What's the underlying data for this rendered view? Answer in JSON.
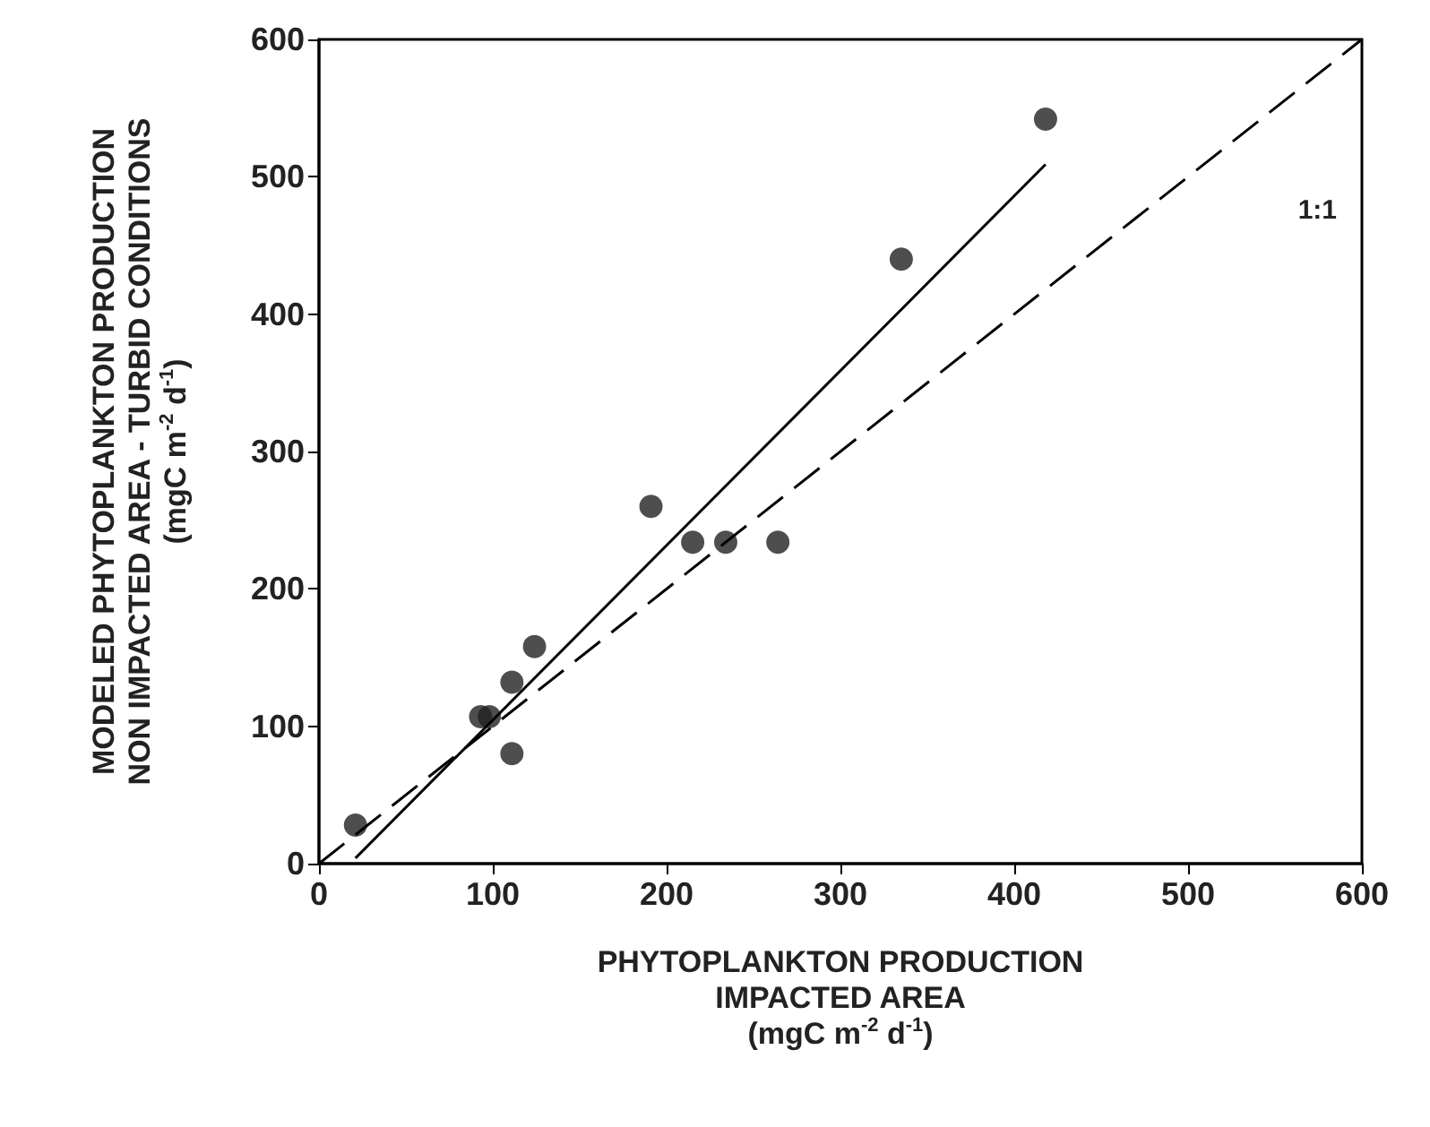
{
  "chart_data": {
    "type": "scatter",
    "xlabel": "PHYTOPLANKTON PRODUCTION\nIMPACTED AREA\n(mgC m$^{-2}$ d$^{-1}$)",
    "ylabel": "MODELED PHYTOPLANKTON PRODUCTION\nNON IMPACTED AREA - TURBID CONDITIONS\n(mgC m$^{-2}$ d$^{-1}$)",
    "xlim": [
      0,
      600
    ],
    "xticks": [
      0,
      100,
      200,
      300,
      400,
      500,
      600
    ],
    "ylim": [
      0,
      600
    ],
    "yticks": [
      0,
      100,
      200,
      300,
      400,
      500,
      600
    ],
    "grid": false,
    "marker": "circle",
    "series": [
      {
        "color": "#222222",
        "x": [
          21,
          93,
          98,
          111,
          111,
          124,
          191,
          215,
          234,
          264,
          335,
          418
        ],
        "values": [
          28,
          107,
          107,
          132,
          80,
          158,
          260,
          234,
          234,
          234,
          440,
          542
        ]
      },
      {
        "type": "line",
        "color": "#000000",
        "line_style": "solid",
        "marker": "none",
        "x": [
          21,
          418
        ],
        "values": [
          4,
          509
        ]
      },
      {
        "type": "line",
        "color": "#000000",
        "line_style": "dashed",
        "marker": "none",
        "x": [
          0,
          600
        ],
        "values": [
          0,
          600
        ]
      }
    ],
    "annotations": [
      "1:1"
    ]
  }
}
